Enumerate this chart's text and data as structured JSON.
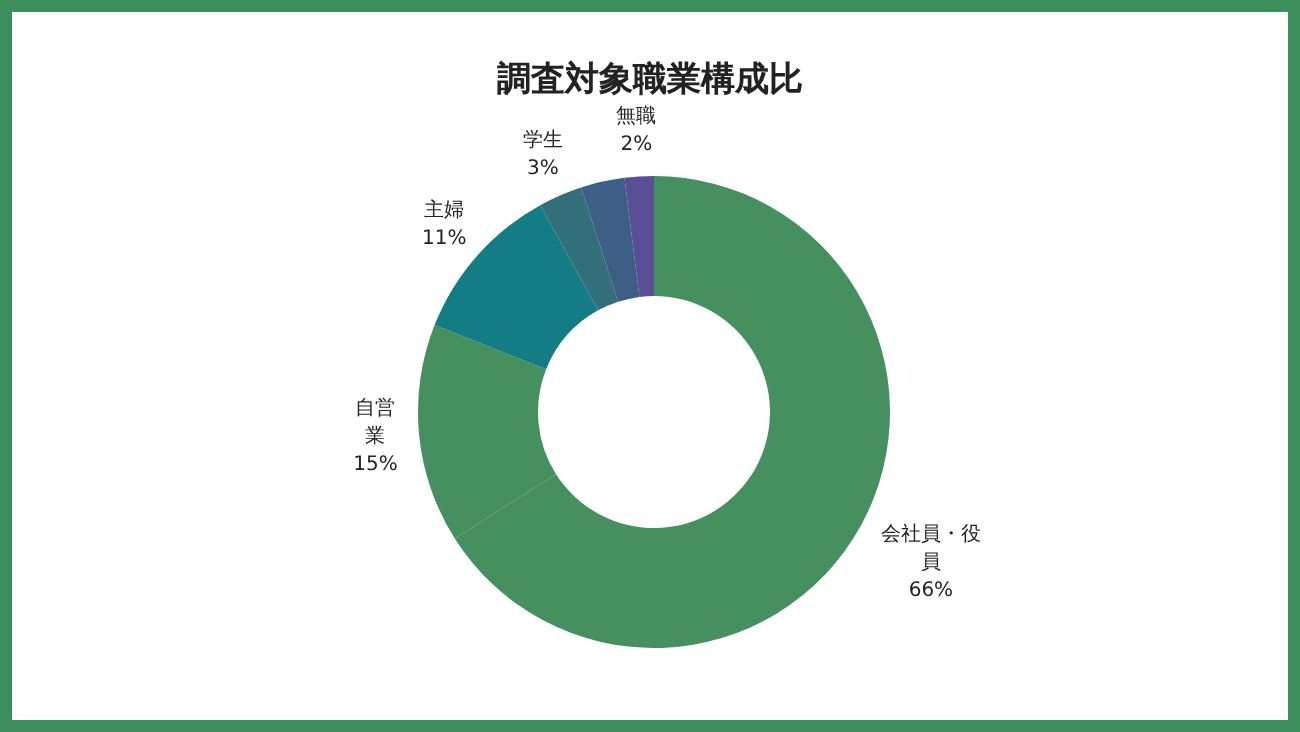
{
  "chart_data": {
    "type": "donut",
    "title": "調査対象職業構成比",
    "categories": [
      "会社員・役員",
      "自営業",
      "主婦",
      "学生",
      null,
      "無職"
    ],
    "values": [
      66,
      15,
      11,
      3,
      3,
      2
    ],
    "colors": [
      "#468f5f",
      "#468f5f",
      "#137c84",
      "#336f7a",
      "#3d5f86",
      "#5a4f97"
    ],
    "value_labels": [
      "66%",
      "15%",
      "11%",
      "3%",
      null,
      "2%"
    ]
  }
}
